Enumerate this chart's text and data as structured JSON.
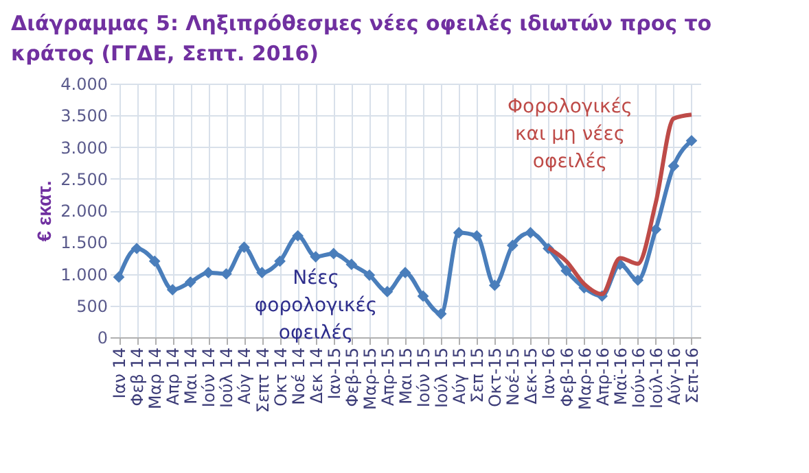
{
  "chart_data": {
    "type": "line",
    "title": "Διάγραμμας 5:  Ληξιπρόθεσμες νέες οφειλές ιδιωτών προς το κράτος  (ΓΓΔΕ,  Σεπτ. 2016)",
    "ylabel": "€ εκατ.",
    "categories": [
      "Ιαν 14",
      "Φεβ 14",
      "Μαρ 14",
      "Απρ 14",
      "Μαι 14",
      "Ιούν 14",
      "Ιούλ 14",
      "Αύγ 14",
      "Σεπτ 14",
      "Οκτ 14",
      "Νοέ 14",
      "Δεκ 14",
      "Ιαν-15",
      "Φεβ-15",
      "Μαρ-15",
      "Απρ-15",
      "Μαι 15",
      "Ιούν 15",
      "Ιούλ 15",
      "Αύγ 15",
      "Σεπ 15",
      "Οκτ-15",
      "Νοέ-15",
      "Δεκ-15",
      "Ιαν-16",
      "Φεβ-16",
      "Μαρ-16",
      "Απρ-16",
      "Μαϊ-16",
      "Ιούν-16",
      "Ιούλ-16",
      "Αύγ-16",
      "Σεπ-16"
    ],
    "series": [
      {
        "name": "Νέες φορολογικές οφειλές",
        "color": "#4a7ebb",
        "marker": "diamond",
        "values": [
          950,
          1400,
          1200,
          750,
          870,
          1020,
          1000,
          1420,
          1020,
          1200,
          1600,
          1270,
          1320,
          1150,
          980,
          720,
          1020,
          650,
          370,
          1650,
          1600,
          820,
          1450,
          1650,
          1400,
          1050,
          780,
          650,
          1150,
          900,
          1700,
          2700,
          3100
        ]
      },
      {
        "name": "Φορολογικές και μη νέες οφειλές",
        "color": "#be4b48",
        "marker": "none",
        "values": [
          null,
          null,
          null,
          null,
          null,
          null,
          null,
          null,
          null,
          null,
          null,
          null,
          null,
          null,
          null,
          null,
          null,
          null,
          null,
          null,
          null,
          null,
          null,
          null,
          1410,
          1200,
          840,
          680,
          1250,
          1160,
          2120,
          3450,
          3510
        ]
      }
    ],
    "ylim": [
      0,
      4000
    ],
    "yticks": [
      0,
      500,
      {
        "value": 1000,
        "label": "1.000"
      },
      {
        "value": 1500,
        "label": "1.500"
      },
      {
        "value": 2000,
        "label": "2.000"
      },
      {
        "value": 2500,
        "label": "2.500"
      },
      {
        "value": 3000,
        "label": "3.000"
      },
      {
        "value": 3500,
        "label": "3.500"
      },
      {
        "value": 4000,
        "label": "4.000"
      }
    ],
    "grid": true
  }
}
